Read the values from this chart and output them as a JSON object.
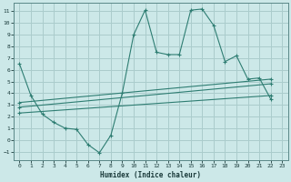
{
  "xlabel": "Humidex (Indice chaleur)",
  "background_color": "#cce8e8",
  "grid_color": "#aacccc",
  "line_color": "#2e7d72",
  "xlim": [
    -0.5,
    23.5
  ],
  "ylim": [
    -1.7,
    11.7
  ],
  "xticks": [
    0,
    1,
    2,
    3,
    4,
    5,
    6,
    7,
    8,
    9,
    10,
    11,
    12,
    13,
    14,
    15,
    16,
    17,
    18,
    19,
    20,
    21,
    22,
    23
  ],
  "yticks": [
    -1,
    0,
    1,
    2,
    3,
    4,
    5,
    6,
    7,
    8,
    9,
    10,
    11
  ],
  "line1_x": [
    0,
    1,
    2,
    3,
    4,
    5,
    6,
    7,
    8,
    9,
    10,
    11,
    12,
    13,
    14,
    15,
    16,
    17,
    18,
    19,
    20,
    21,
    22
  ],
  "line1_y": [
    6.5,
    3.8,
    2.2,
    1.5,
    1.0,
    0.9,
    -0.4,
    -1.1,
    0.4,
    4.0,
    9.0,
    11.1,
    7.5,
    7.3,
    7.3,
    11.1,
    11.2,
    9.8,
    6.7,
    7.2,
    5.2,
    5.3,
    3.5
  ],
  "line2_x": [
    0,
    22
  ],
  "line2_y": [
    3.2,
    5.2
  ],
  "line3_x": [
    0,
    22
  ],
  "line3_y": [
    2.8,
    4.8
  ],
  "line4_x": [
    0,
    22
  ],
  "line4_y": [
    2.3,
    3.8
  ],
  "line2_markers": [
    [
      0,
      3.2
    ],
    [
      22,
      5.2
    ]
  ],
  "line3_markers": [
    [
      0,
      2.8
    ],
    [
      22,
      4.8
    ]
  ],
  "line4_markers": [
    [
      0,
      2.3
    ],
    [
      22,
      3.8
    ]
  ]
}
